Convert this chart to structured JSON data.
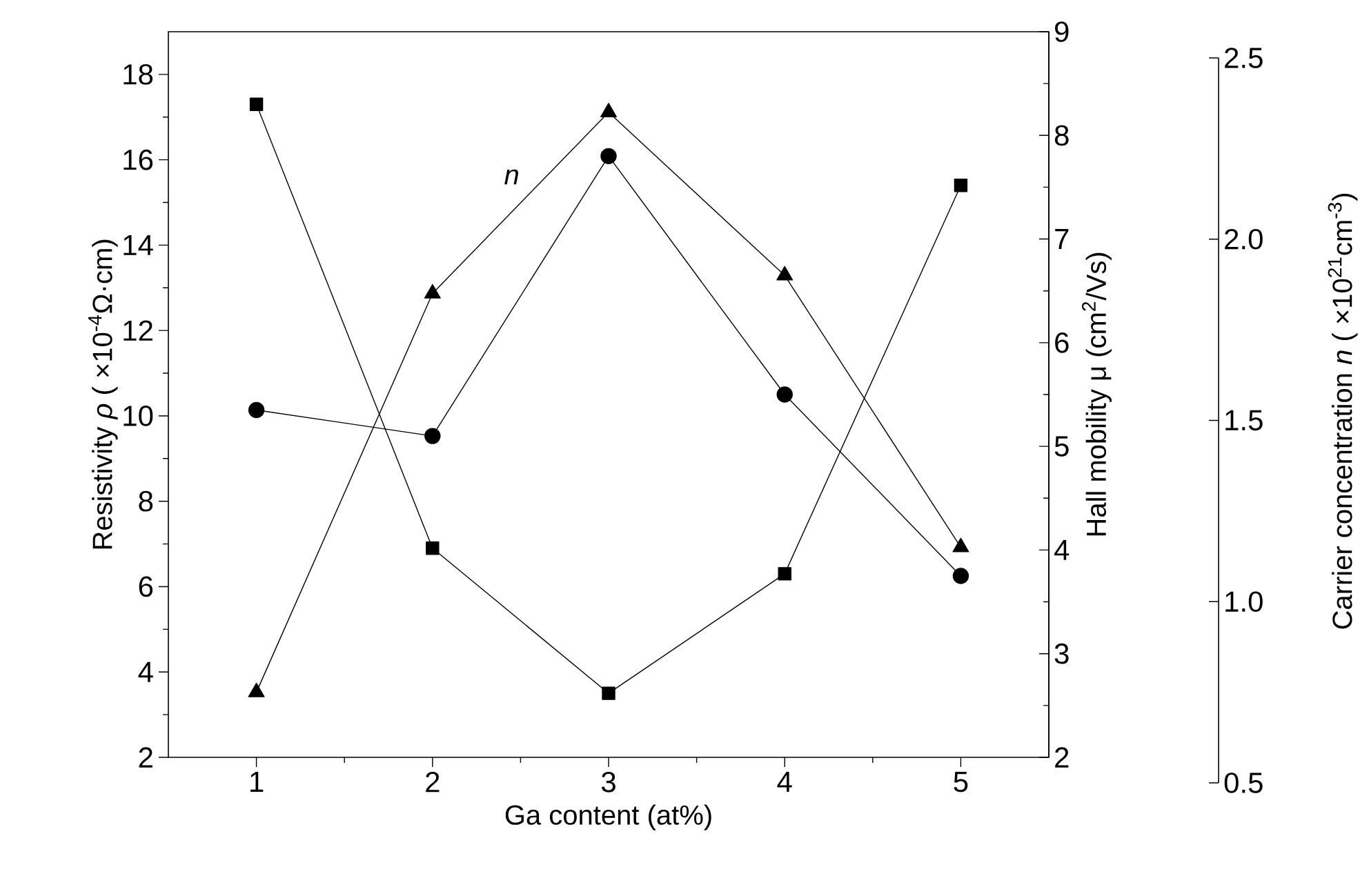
{
  "chart_data": {
    "type": "line",
    "xlabel": "Ga content (at%)",
    "ylabel": "Resistivity *ρ* ( ×10$^{-4}$Ω·cm)",
    "y2label": "Hall mobility μ (cm$^{2}$/Vs)",
    "y3label": "Carrier concentration *n* ( ×10$^{21}$cm$^{-3}$)",
    "x": [
      1,
      2,
      3,
      4,
      5
    ],
    "xlim": [
      0.5,
      5.5
    ],
    "xticks": [
      1,
      2,
      3,
      4,
      5
    ],
    "ylim": [
      2,
      19
    ],
    "yticks": [
      2,
      4,
      6,
      8,
      10,
      12,
      14,
      16,
      18
    ],
    "y2lim": [
      2,
      9
    ],
    "y2ticks": [
      2,
      3,
      4,
      5,
      6,
      7,
      8,
      9
    ],
    "y3lim": [
      0.5,
      2.5
    ],
    "y3ticks": [
      0.5,
      {
        "value": 1,
        "label": "1.0"
      },
      1.5,
      {
        "value": 2,
        "label": "2.0"
      },
      2.5
    ],
    "series": [
      {
        "color": "#000000",
        "marker": "square",
        "axis": "y",
        "values": [
          17.3,
          6.9,
          3.5,
          6.3,
          15.4
        ]
      },
      {
        "color": "#000000",
        "marker": "circle",
        "axis": "y2",
        "values": [
          5.35,
          5.1,
          7.8,
          5.5,
          3.75
        ]
      },
      {
        "color": "#000000",
        "marker": "triangle",
        "axis": "y3",
        "values": [
          0.75,
          1.85,
          2.35,
          1.9,
          1.15
        ]
      }
    ],
    "annotations": [
      "n"
    ],
    "grid": false,
    "line_style": "solid"
  }
}
